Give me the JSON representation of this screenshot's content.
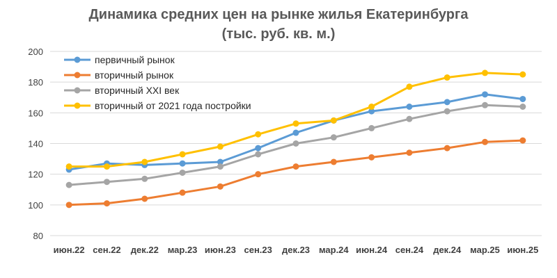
{
  "chart_data": {
    "type": "line",
    "title": "Динамика средних цен на рынке жилья Екатеринбурга",
    "subtitle": "(тыс. руб. кв. м.)",
    "xlabel": "",
    "ylabel": "",
    "categories": [
      "июн.22",
      "сен.22",
      "дек.22",
      "мар.23",
      "июн.23",
      "сен.23",
      "дек.23",
      "мар.24",
      "июн.24",
      "сен.24",
      "дек.24",
      "мар.25",
      "июн.25"
    ],
    "ylim": [
      80,
      200
    ],
    "yticks": [
      80,
      100,
      120,
      140,
      160,
      180,
      200
    ],
    "grid": true,
    "legend_position": "top-left",
    "series": [
      {
        "name": "первичный рынок",
        "color": "#5B9BD5",
        "values": [
          123,
          127,
          126,
          127,
          128,
          137,
          147,
          155,
          161,
          164,
          167,
          172,
          169
        ]
      },
      {
        "name": "вторичный рынок",
        "color": "#ED7D31",
        "values": [
          100,
          101,
          104,
          108,
          112,
          120,
          125,
          128,
          131,
          134,
          137,
          141,
          142
        ]
      },
      {
        "name": "вторичный XXI век",
        "color": "#A5A5A5",
        "values": [
          113,
          115,
          117,
          121,
          125,
          133,
          140,
          144,
          150,
          156,
          161,
          165,
          164
        ]
      },
      {
        "name": "вторичный от 2021 года постройки",
        "color": "#FFC000",
        "values": [
          125,
          125,
          128,
          133,
          138,
          146,
          153,
          155,
          164,
          177,
          183,
          186,
          185
        ]
      }
    ]
  }
}
